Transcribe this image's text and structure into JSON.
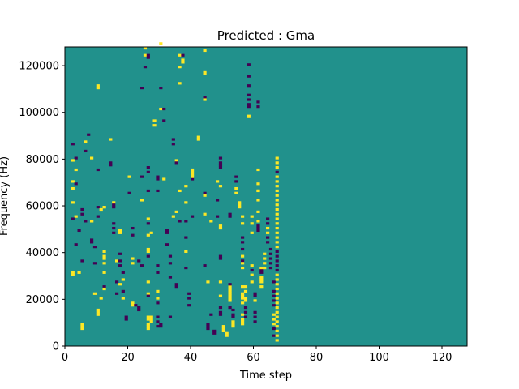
{
  "chart_data": {
    "type": "heatmap",
    "title": "Predicted : Gma",
    "xlabel": "Time step",
    "ylabel": "Frequency (Hz)",
    "xlim": [
      0,
      128
    ],
    "ylim": [
      0,
      128000
    ],
    "xticks": [
      0,
      20,
      40,
      60,
      80,
      100,
      120
    ],
    "yticks": [
      0,
      20000,
      40000,
      60000,
      80000,
      100000,
      120000
    ],
    "colormap": "viridis",
    "colors": {
      "background": "#21918c",
      "low": "#440154",
      "high": "#fde725"
    },
    "grid": "128 x 128 cells",
    "note_values": "cells: 1 = low (purple), 2 = high (yellow), background = mid (teal)",
    "cells": [
      [
        2,
        86,
        1
      ],
      [
        3,
        80,
        1
      ],
      [
        2,
        79,
        2
      ],
      [
        3,
        75,
        2
      ],
      [
        2,
        70,
        2
      ],
      [
        3,
        69,
        1
      ],
      [
        2,
        67,
        2
      ],
      [
        2,
        61,
        2
      ],
      [
        3,
        55,
        2
      ],
      [
        2,
        54,
        1
      ],
      [
        4,
        49,
        1
      ],
      [
        3,
        43,
        1
      ],
      [
        2,
        31,
        2
      ],
      [
        2,
        30,
        2
      ],
      [
        4,
        31,
        2
      ],
      [
        5,
        58,
        1
      ],
      [
        5,
        56,
        1
      ],
      [
        6,
        53,
        1
      ],
      [
        5,
        36,
        1
      ],
      [
        5,
        9,
        2
      ],
      [
        5,
        8,
        2
      ],
      [
        5,
        7,
        2
      ],
      [
        6,
        83,
        1
      ],
      [
        6,
        87,
        2
      ],
      [
        7,
        90,
        1
      ],
      [
        8,
        80,
        2
      ],
      [
        8,
        53,
        2
      ],
      [
        8,
        53,
        2
      ],
      [
        8,
        45,
        1
      ],
      [
        8,
        44,
        1
      ],
      [
        9,
        42,
        1
      ],
      [
        9,
        35,
        1
      ],
      [
        9,
        22,
        2
      ],
      [
        10,
        14,
        2
      ],
      [
        10,
        13,
        2
      ],
      [
        10,
        15,
        2
      ],
      [
        10,
        55,
        1
      ],
      [
        10,
        59,
        1
      ],
      [
        10,
        75,
        1
      ],
      [
        10,
        111,
        2
      ],
      [
        10,
        110,
        2
      ],
      [
        11,
        20,
        2
      ],
      [
        12,
        59,
        2
      ],
      [
        11,
        58,
        2
      ],
      [
        12,
        59,
        2
      ],
      [
        12,
        40,
        2
      ],
      [
        12,
        38,
        2
      ],
      [
        12,
        37,
        2
      ],
      [
        12,
        35,
        2
      ],
      [
        12,
        31,
        2
      ],
      [
        12,
        25,
        1
      ],
      [
        12,
        24,
        2
      ],
      [
        14,
        78,
        1
      ],
      [
        14,
        77,
        1
      ],
      [
        14,
        88,
        2
      ],
      [
        15,
        61,
        2
      ],
      [
        15,
        60,
        1
      ],
      [
        15,
        59,
        1
      ],
      [
        15,
        52,
        1
      ],
      [
        15,
        50,
        1
      ],
      [
        15,
        48,
        1
      ],
      [
        16,
        36,
        2
      ],
      [
        16,
        27,
        1
      ],
      [
        16,
        22,
        1
      ],
      [
        17,
        26,
        2
      ],
      [
        17,
        49,
        2
      ],
      [
        17,
        48,
        2
      ],
      [
        17,
        39,
        1
      ],
      [
        17,
        36,
        1
      ],
      [
        17,
        34,
        1
      ],
      [
        18,
        31,
        1
      ],
      [
        18,
        28,
        2
      ],
      [
        18,
        23,
        1
      ],
      [
        18,
        20,
        2
      ],
      [
        19,
        12,
        1
      ],
      [
        19,
        11,
        1
      ],
      [
        20,
        72,
        2
      ],
      [
        20,
        65,
        1
      ],
      [
        21,
        17,
        2
      ],
      [
        21,
        18,
        2
      ],
      [
        21,
        50,
        1
      ],
      [
        21,
        47,
        1
      ],
      [
        21,
        37,
        2
      ],
      [
        21,
        35,
        2
      ],
      [
        22,
        17,
        1
      ],
      [
        23,
        15,
        1
      ],
      [
        23,
        16,
        1
      ],
      [
        23,
        36,
        1
      ],
      [
        24,
        34,
        1
      ],
      [
        24,
        62,
        2
      ],
      [
        24,
        72,
        1
      ],
      [
        24,
        110,
        1
      ],
      [
        25,
        119,
        1
      ],
      [
        25,
        124,
        2
      ],
      [
        25,
        127,
        2
      ],
      [
        26,
        124,
        1
      ],
      [
        26,
        123,
        1
      ],
      [
        26,
        76,
        1
      ],
      [
        26,
        74,
        1
      ],
      [
        26,
        66,
        1
      ],
      [
        26,
        54,
        2
      ],
      [
        26,
        52,
        1
      ],
      [
        26,
        47,
        2
      ],
      [
        26,
        41,
        2
      ],
      [
        26,
        40,
        2
      ],
      [
        26,
        38,
        1
      ],
      [
        26,
        27,
        2
      ],
      [
        26,
        22,
        2
      ],
      [
        26,
        21,
        1
      ],
      [
        26,
        12,
        2
      ],
      [
        26,
        11,
        2
      ],
      [
        26,
        9,
        2
      ],
      [
        26,
        8,
        2
      ],
      [
        26,
        7,
        2
      ],
      [
        27,
        48,
        2
      ],
      [
        27,
        12,
        2
      ],
      [
        27,
        11,
        2
      ],
      [
        27,
        10,
        2
      ],
      [
        28,
        94,
        2
      ],
      [
        28,
        96,
        2
      ],
      [
        29,
        72,
        1
      ],
      [
        29,
        71,
        1
      ],
      [
        29,
        66,
        1
      ],
      [
        29,
        31,
        1
      ],
      [
        29,
        34,
        1
      ],
      [
        29,
        23,
        2
      ],
      [
        29,
        20,
        2
      ],
      [
        29,
        18,
        1
      ],
      [
        30,
        110,
        1
      ],
      [
        30,
        101,
        2
      ],
      [
        30,
        129,
        2
      ],
      [
        29,
        8,
        1
      ],
      [
        29,
        10,
        1
      ],
      [
        29,
        12,
        1
      ],
      [
        30,
        8,
        1
      ],
      [
        30,
        9,
        1
      ],
      [
        31,
        96,
        1
      ],
      [
        31,
        101,
        1
      ],
      [
        31,
        71,
        2
      ],
      [
        32,
        43,
        1
      ],
      [
        32,
        49,
        1
      ],
      [
        32,
        48,
        1
      ],
      [
        33,
        38,
        1
      ],
      [
        33,
        35,
        1
      ],
      [
        33,
        29,
        1
      ],
      [
        33,
        12,
        1
      ],
      [
        34,
        88,
        1
      ],
      [
        34,
        86,
        1
      ],
      [
        34,
        55,
        2
      ],
      [
        35,
        79,
        2
      ],
      [
        35,
        78,
        1
      ],
      [
        35,
        57,
        2
      ],
      [
        35,
        26,
        1
      ],
      [
        35,
        25,
        1
      ],
      [
        36,
        66,
        2
      ],
      [
        36,
        53,
        1
      ],
      [
        36,
        112,
        2
      ],
      [
        36,
        119,
        2
      ],
      [
        36,
        124,
        2
      ],
      [
        37,
        121,
        2
      ],
      [
        37,
        122,
        2
      ],
      [
        37,
        124,
        1
      ],
      [
        38,
        68,
        2
      ],
      [
        38,
        61,
        2
      ],
      [
        38,
        53,
        1
      ],
      [
        38,
        46,
        1
      ],
      [
        38,
        40,
        2
      ],
      [
        38,
        33,
        1
      ],
      [
        39,
        22,
        1
      ],
      [
        39,
        20,
        1
      ],
      [
        39,
        17,
        1
      ],
      [
        40,
        55,
        1
      ],
      [
        40,
        75,
        2
      ],
      [
        40,
        74,
        2
      ],
      [
        40,
        73,
        2
      ],
      [
        40,
        71,
        1
      ],
      [
        40,
        72,
        2
      ],
      [
        42,
        89,
        2
      ],
      [
        42,
        88,
        2
      ],
      [
        44,
        116,
        2
      ],
      [
        44,
        117,
        2
      ],
      [
        44,
        126,
        2
      ],
      [
        44,
        106,
        1
      ],
      [
        44,
        105,
        2
      ],
      [
        44,
        65,
        1
      ],
      [
        44,
        64,
        2
      ],
      [
        44,
        56,
        2
      ],
      [
        44,
        34,
        1
      ],
      [
        45,
        27,
        2
      ],
      [
        45,
        8,
        1
      ],
      [
        45,
        7,
        1
      ],
      [
        45,
        9,
        1
      ],
      [
        46,
        53,
        2
      ],
      [
        46,
        13,
        1
      ],
      [
        47,
        6,
        1
      ],
      [
        47,
        5,
        1
      ],
      [
        48,
        55,
        1
      ],
      [
        48,
        62,
        1
      ],
      [
        48,
        70,
        2
      ],
      [
        49,
        80,
        1
      ],
      [
        49,
        78,
        1
      ],
      [
        49,
        76,
        1
      ],
      [
        49,
        77,
        1
      ],
      [
        49,
        68,
        2
      ],
      [
        49,
        51,
        2
      ],
      [
        49,
        50,
        2
      ],
      [
        49,
        38,
        1
      ],
      [
        49,
        37,
        1
      ],
      [
        49,
        27,
        2
      ],
      [
        49,
        21,
        2
      ],
      [
        49,
        16,
        1
      ],
      [
        49,
        14,
        1
      ],
      [
        49,
        13,
        1
      ],
      [
        50,
        8,
        2
      ],
      [
        50,
        7,
        2
      ],
      [
        50,
        6,
        2
      ],
      [
        51,
        5,
        2
      ],
      [
        51,
        4,
        2
      ],
      [
        52,
        55,
        1
      ],
      [
        52,
        56,
        1
      ],
      [
        52,
        19,
        2
      ],
      [
        52,
        22,
        2
      ],
      [
        52,
        24,
        2
      ],
      [
        52,
        23,
        2
      ],
      [
        52,
        21,
        2
      ],
      [
        52,
        20,
        2
      ],
      [
        52,
        25,
        2
      ],
      [
        52,
        26,
        1
      ],
      [
        52,
        16,
        1
      ],
      [
        53,
        15,
        1
      ],
      [
        53,
        13,
        1
      ],
      [
        53,
        12,
        1
      ],
      [
        53,
        8,
        2
      ],
      [
        53,
        10,
        2
      ],
      [
        53,
        9,
        2
      ],
      [
        54,
        72,
        1
      ],
      [
        54,
        70,
        1
      ],
      [
        54,
        67,
        2
      ],
      [
        54,
        65,
        2
      ],
      [
        55,
        61,
        2
      ],
      [
        55,
        60,
        2
      ],
      [
        55,
        59,
        2
      ],
      [
        56,
        55,
        2
      ],
      [
        56,
        52,
        2
      ],
      [
        56,
        46,
        1
      ],
      [
        56,
        44,
        1
      ],
      [
        56,
        41,
        1
      ],
      [
        56,
        38,
        2
      ],
      [
        56,
        36,
        1
      ],
      [
        56,
        35,
        2
      ],
      [
        56,
        33,
        2
      ],
      [
        56,
        25,
        2
      ],
      [
        56,
        22,
        2
      ],
      [
        56,
        21,
        2
      ],
      [
        56,
        20,
        2
      ],
      [
        56,
        18,
        2
      ],
      [
        56,
        13,
        2
      ],
      [
        56,
        11,
        2
      ],
      [
        56,
        10,
        2
      ],
      [
        56,
        9,
        2
      ],
      [
        57,
        25,
        2
      ],
      [
        57,
        23,
        2
      ],
      [
        57,
        20,
        2
      ],
      [
        57,
        19,
        2
      ],
      [
        57,
        16,
        1
      ],
      [
        57,
        14,
        1
      ],
      [
        57,
        12,
        1
      ],
      [
        58,
        98,
        2
      ],
      [
        58,
        102,
        1
      ],
      [
        58,
        103,
        1
      ],
      [
        58,
        105,
        1
      ],
      [
        58,
        111,
        1
      ],
      [
        58,
        107,
        1
      ],
      [
        58,
        115,
        1
      ],
      [
        58,
        120,
        1
      ],
      [
        59,
        55,
        2
      ],
      [
        59,
        52,
        2
      ],
      [
        59,
        48,
        2
      ],
      [
        59,
        34,
        2
      ],
      [
        59,
        32,
        1
      ],
      [
        59,
        30,
        2
      ],
      [
        59,
        27,
        2
      ],
      [
        60,
        22,
        1
      ],
      [
        60,
        21,
        1
      ],
      [
        60,
        19,
        2
      ],
      [
        60,
        14,
        1
      ],
      [
        60,
        12,
        1
      ],
      [
        60,
        10,
        1
      ],
      [
        61,
        104,
        1
      ],
      [
        61,
        102,
        1
      ],
      [
        61,
        75,
        2
      ],
      [
        61,
        69,
        2
      ],
      [
        61,
        66,
        2
      ],
      [
        61,
        66,
        2
      ],
      [
        61,
        62,
        2
      ],
      [
        61,
        57,
        2
      ],
      [
        61,
        53,
        2
      ],
      [
        61,
        51,
        1
      ],
      [
        61,
        50,
        1
      ],
      [
        61,
        49,
        1
      ],
      [
        62,
        25,
        2
      ],
      [
        62,
        27,
        2
      ],
      [
        62,
        28,
        2
      ],
      [
        62,
        29,
        2
      ],
      [
        62,
        31,
        1
      ],
      [
        62,
        32,
        1
      ],
      [
        62,
        33,
        2
      ],
      [
        63,
        39,
        2
      ],
      [
        63,
        37,
        2
      ],
      [
        63,
        35,
        2
      ],
      [
        63,
        33,
        2
      ],
      [
        64,
        54,
        1
      ],
      [
        64,
        52,
        1
      ],
      [
        64,
        50,
        2
      ],
      [
        64,
        48,
        2
      ],
      [
        64,
        46,
        1
      ],
      [
        64,
        44,
        1
      ],
      [
        65,
        41,
        1
      ],
      [
        65,
        39,
        1
      ],
      [
        65,
        37,
        1
      ],
      [
        65,
        35,
        1
      ],
      [
        65,
        33,
        1
      ],
      [
        66,
        27,
        1
      ],
      [
        66,
        23,
        1
      ],
      [
        66,
        21,
        1
      ],
      [
        66,
        19,
        1
      ],
      [
        66,
        17,
        1
      ],
      [
        66,
        13,
        2
      ],
      [
        66,
        11,
        2
      ],
      [
        66,
        9,
        2
      ],
      [
        66,
        7,
        1
      ],
      [
        66,
        4,
        1
      ],
      [
        67,
        80,
        2
      ],
      [
        67,
        78,
        2
      ],
      [
        67,
        76,
        2
      ],
      [
        67,
        74,
        1
      ],
      [
        67,
        72,
        2
      ],
      [
        67,
        70,
        2
      ],
      [
        67,
        68,
        2
      ],
      [
        67,
        66,
        2
      ],
      [
        67,
        64,
        2
      ],
      [
        67,
        62,
        2
      ],
      [
        67,
        60,
        2
      ],
      [
        67,
        58,
        2
      ],
      [
        67,
        56,
        2
      ],
      [
        67,
        54,
        2
      ],
      [
        67,
        52,
        2
      ],
      [
        67,
        50,
        2
      ],
      [
        67,
        48,
        2
      ],
      [
        67,
        46,
        2
      ],
      [
        67,
        44,
        2
      ],
      [
        67,
        42,
        2
      ],
      [
        67,
        40,
        1
      ],
      [
        67,
        38,
        1
      ],
      [
        67,
        36,
        1
      ],
      [
        67,
        34,
        1
      ],
      [
        67,
        32,
        1
      ],
      [
        67,
        30,
        2
      ],
      [
        67,
        28,
        2
      ],
      [
        67,
        26,
        2
      ],
      [
        67,
        24,
        2
      ],
      [
        67,
        22,
        2
      ],
      [
        67,
        20,
        2
      ],
      [
        67,
        18,
        2
      ],
      [
        67,
        16,
        2
      ],
      [
        67,
        14,
        2
      ],
      [
        67,
        12,
        2
      ],
      [
        67,
        10,
        2
      ],
      [
        67,
        8,
        2
      ],
      [
        67,
        6,
        2
      ],
      [
        67,
        4,
        2
      ],
      [
        67,
        2,
        2
      ]
    ]
  }
}
